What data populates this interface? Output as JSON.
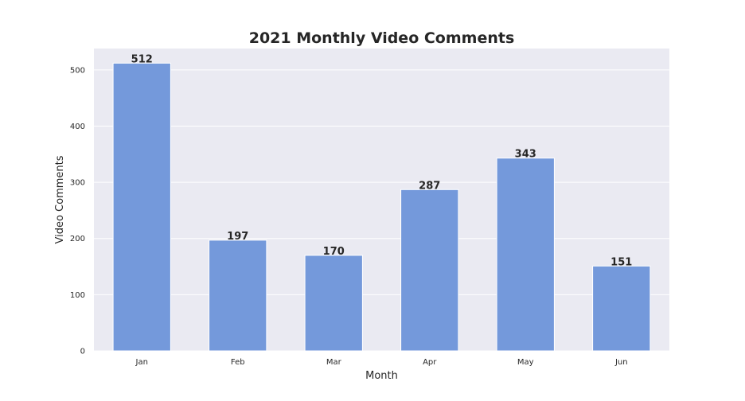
{
  "chart_data": {
    "type": "bar",
    "title": "2021 Monthly Video Comments",
    "xlabel": "Month",
    "ylabel": "Video Comments",
    "categories": [
      "Jan",
      "Feb",
      "Mar",
      "Apr",
      "May",
      "Jun"
    ],
    "values": [
      512,
      197,
      170,
      287,
      343,
      151
    ],
    "data_labels": [
      "512",
      "197",
      "170",
      "287",
      "343",
      "151"
    ],
    "ylim": [
      0,
      538
    ],
    "yticks": [
      0,
      100,
      200,
      300,
      400,
      500
    ],
    "ytick_labels": [
      "0",
      "100",
      "200",
      "300",
      "400",
      "500"
    ],
    "grid": true,
    "colors": {
      "bar": "#7499db",
      "plot_background": "#eaeaf2",
      "grid": "#ffffff",
      "text": "#262626"
    }
  }
}
